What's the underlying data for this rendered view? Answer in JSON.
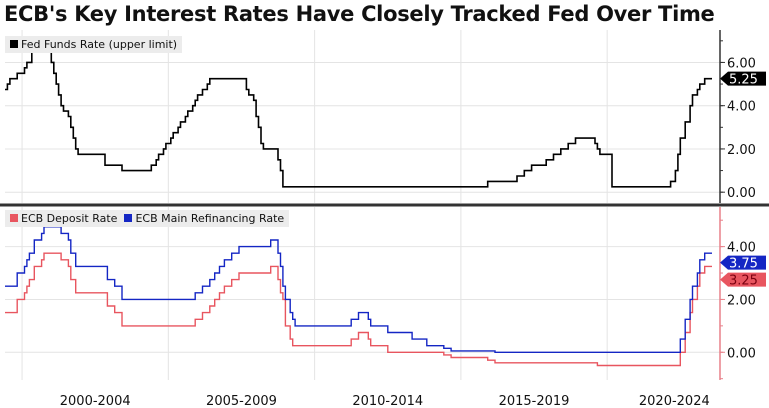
{
  "title": "ECB's Key Interest Rates Have Closely Tracked Fed Over Time",
  "chart_data": [
    {
      "type": "line",
      "step": true,
      "xlim": [
        "1999-06",
        "2023-08"
      ],
      "ylim": [
        -0.5,
        7.5
      ],
      "yticks": [
        "0.00",
        "2.00",
        "4.00",
        "6.00"
      ],
      "legend_position": "top-left",
      "grid": true,
      "series": [
        {
          "name": "Fed Funds Rate (upper limit)",
          "color": "#000000",
          "last_value_label": "5.25",
          "points": [
            [
              "1999-06",
              4.75
            ],
            [
              "1999-07",
              5.0
            ],
            [
              "1999-08",
              5.25
            ],
            [
              "1999-11",
              5.5
            ],
            [
              "2000-02",
              5.75
            ],
            [
              "2000-03",
              6.0
            ],
            [
              "2000-05",
              6.5
            ],
            [
              "2001-01",
              6.0
            ],
            [
              "2001-02",
              5.5
            ],
            [
              "2001-03",
              5.0
            ],
            [
              "2001-04",
              4.5
            ],
            [
              "2001-05",
              4.0
            ],
            [
              "2001-06",
              3.75
            ],
            [
              "2001-08",
              3.5
            ],
            [
              "2001-09",
              3.0
            ],
            [
              "2001-10",
              2.5
            ],
            [
              "2001-11",
              2.0
            ],
            [
              "2001-12",
              1.75
            ],
            [
              "2002-11",
              1.25
            ],
            [
              "2003-06",
              1.0
            ],
            [
              "2004-06",
              1.25
            ],
            [
              "2004-08",
              1.5
            ],
            [
              "2004-09",
              1.75
            ],
            [
              "2004-11",
              2.0
            ],
            [
              "2004-12",
              2.25
            ],
            [
              "2005-02",
              2.5
            ],
            [
              "2005-03",
              2.75
            ],
            [
              "2005-05",
              3.0
            ],
            [
              "2005-06",
              3.25
            ],
            [
              "2005-08",
              3.5
            ],
            [
              "2005-09",
              3.75
            ],
            [
              "2005-11",
              4.0
            ],
            [
              "2005-12",
              4.25
            ],
            [
              "2006-01",
              4.5
            ],
            [
              "2006-03",
              4.75
            ],
            [
              "2006-05",
              5.0
            ],
            [
              "2006-06",
              5.25
            ],
            [
              "2007-09",
              4.75
            ],
            [
              "2007-10",
              4.5
            ],
            [
              "2007-12",
              4.25
            ],
            [
              "2008-01",
              3.5
            ],
            [
              "2008-02",
              3.0
            ],
            [
              "2008-03",
              2.25
            ],
            [
              "2008-04",
              2.0
            ],
            [
              "2008-10",
              1.5
            ],
            [
              "2008-11",
              1.0
            ],
            [
              "2008-12",
              0.25
            ],
            [
              "2015-12",
              0.5
            ],
            [
              "2016-12",
              0.75
            ],
            [
              "2017-03",
              1.0
            ],
            [
              "2017-06",
              1.25
            ],
            [
              "2017-12",
              1.5
            ],
            [
              "2018-03",
              1.75
            ],
            [
              "2018-06",
              2.0
            ],
            [
              "2018-09",
              2.25
            ],
            [
              "2018-12",
              2.5
            ],
            [
              "2019-08",
              2.25
            ],
            [
              "2019-09",
              2.0
            ],
            [
              "2019-10",
              1.75
            ],
            [
              "2020-03",
              0.25
            ],
            [
              "2022-03",
              0.5
            ],
            [
              "2022-05",
              1.0
            ],
            [
              "2022-06",
              1.75
            ],
            [
              "2022-07",
              2.5
            ],
            [
              "2022-09",
              3.25
            ],
            [
              "2022-11",
              4.0
            ],
            [
              "2022-12",
              4.5
            ],
            [
              "2023-02",
              4.75
            ],
            [
              "2023-03",
              5.0
            ],
            [
              "2023-05",
              5.25
            ],
            [
              "2023-08",
              5.25
            ]
          ]
        }
      ]
    },
    {
      "type": "line",
      "step": true,
      "xlim": [
        "1999-06",
        "2023-08"
      ],
      "ylim": [
        -1.05,
        5.5
      ],
      "yticks": [
        "0.00",
        "2.00",
        "4.00"
      ],
      "xticks": [
        "2000-2004",
        "2005-2009",
        "2010-2014",
        "2015-2019",
        "2020-2024"
      ],
      "legend_position": "top-left",
      "grid": true,
      "series": [
        {
          "name": "ECB Deposit Rate",
          "color": "#e8555f",
          "last_value_label": "3.25",
          "points": [
            [
              "1999-06",
              1.5
            ],
            [
              "1999-11",
              2.0
            ],
            [
              "2000-02",
              2.25
            ],
            [
              "2000-03",
              2.5
            ],
            [
              "2000-04",
              2.75
            ],
            [
              "2000-06",
              3.25
            ],
            [
              "2000-09",
              3.5
            ],
            [
              "2000-10",
              3.75
            ],
            [
              "2001-05",
              3.5
            ],
            [
              "2001-08",
              3.25
            ],
            [
              "2001-09",
              2.75
            ],
            [
              "2001-11",
              2.25
            ],
            [
              "2002-12",
              1.75
            ],
            [
              "2003-03",
              1.5
            ],
            [
              "2003-06",
              1.0
            ],
            [
              "2005-12",
              1.25
            ],
            [
              "2006-03",
              1.5
            ],
            [
              "2006-06",
              1.75
            ],
            [
              "2006-08",
              2.0
            ],
            [
              "2006-10",
              2.25
            ],
            [
              "2006-12",
              2.5
            ],
            [
              "2007-03",
              2.75
            ],
            [
              "2007-06",
              3.0
            ],
            [
              "2008-07",
              3.25
            ],
            [
              "2008-10",
              2.75
            ],
            [
              "2008-11",
              2.25
            ],
            [
              "2008-12",
              2.0
            ],
            [
              "2009-01",
              1.0
            ],
            [
              "2009-03",
              0.5
            ],
            [
              "2009-04",
              0.25
            ],
            [
              "2011-04",
              0.5
            ],
            [
              "2011-07",
              0.75
            ],
            [
              "2011-11",
              0.5
            ],
            [
              "2011-12",
              0.25
            ],
            [
              "2012-07",
              0.0
            ],
            [
              "2014-06",
              -0.1
            ],
            [
              "2014-09",
              -0.2
            ],
            [
              "2015-12",
              -0.3
            ],
            [
              "2016-03",
              -0.4
            ],
            [
              "2019-09",
              -0.5
            ],
            [
              "2022-07",
              0.0
            ],
            [
              "2022-09",
              0.75
            ],
            [
              "2022-11",
              1.5
            ],
            [
              "2022-12",
              2.0
            ],
            [
              "2023-02",
              2.5
            ],
            [
              "2023-03",
              3.0
            ],
            [
              "2023-05",
              3.25
            ],
            [
              "2023-08",
              3.25
            ]
          ]
        },
        {
          "name": "ECB Main Refinancing Rate",
          "color": "#1426c4",
          "last_value_label": "3.75",
          "points": [
            [
              "1999-06",
              2.5
            ],
            [
              "1999-11",
              3.0
            ],
            [
              "2000-02",
              3.25
            ],
            [
              "2000-03",
              3.5
            ],
            [
              "2000-04",
              3.75
            ],
            [
              "2000-06",
              4.25
            ],
            [
              "2000-09",
              4.5
            ],
            [
              "2000-10",
              4.75
            ],
            [
              "2001-05",
              4.5
            ],
            [
              "2001-08",
              4.25
            ],
            [
              "2001-09",
              3.75
            ],
            [
              "2001-11",
              3.25
            ],
            [
              "2002-12",
              2.75
            ],
            [
              "2003-03",
              2.5
            ],
            [
              "2003-06",
              2.0
            ],
            [
              "2005-12",
              2.25
            ],
            [
              "2006-03",
              2.5
            ],
            [
              "2006-06",
              2.75
            ],
            [
              "2006-08",
              3.0
            ],
            [
              "2006-10",
              3.25
            ],
            [
              "2006-12",
              3.5
            ],
            [
              "2007-03",
              3.75
            ],
            [
              "2007-06",
              4.0
            ],
            [
              "2008-07",
              4.25
            ],
            [
              "2008-10",
              3.75
            ],
            [
              "2008-11",
              3.25
            ],
            [
              "2008-12",
              2.5
            ],
            [
              "2009-01",
              2.0
            ],
            [
              "2009-03",
              1.5
            ],
            [
              "2009-04",
              1.25
            ],
            [
              "2009-05",
              1.0
            ],
            [
              "2011-04",
              1.25
            ],
            [
              "2011-07",
              1.5
            ],
            [
              "2011-11",
              1.25
            ],
            [
              "2011-12",
              1.0
            ],
            [
              "2012-07",
              0.75
            ],
            [
              "2013-05",
              0.5
            ],
            [
              "2013-11",
              0.25
            ],
            [
              "2014-06",
              0.15
            ],
            [
              "2014-09",
              0.05
            ],
            [
              "2016-03",
              0.0
            ],
            [
              "2022-07",
              0.5
            ],
            [
              "2022-09",
              1.25
            ],
            [
              "2022-11",
              2.0
            ],
            [
              "2022-12",
              2.5
            ],
            [
              "2023-02",
              3.0
            ],
            [
              "2023-03",
              3.5
            ],
            [
              "2023-05",
              3.75
            ],
            [
              "2023-08",
              3.75
            ]
          ]
        }
      ]
    }
  ]
}
